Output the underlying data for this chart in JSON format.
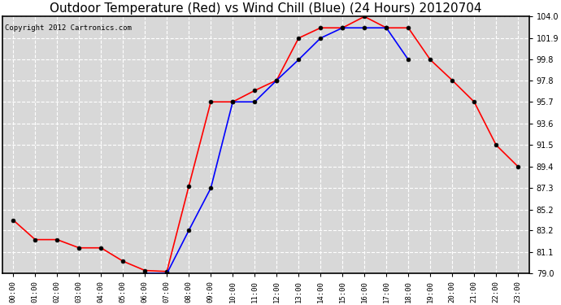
{
  "title": "Outdoor Temperature (Red) vs Wind Chill (Blue) (24 Hours) 20120704",
  "copyright": "Copyright 2012 Cartronics.com",
  "x_labels": [
    "00:00",
    "01:00",
    "02:00",
    "03:00",
    "04:00",
    "05:00",
    "06:00",
    "07:00",
    "08:00",
    "09:00",
    "10:00",
    "11:00",
    "12:00",
    "13:00",
    "14:00",
    "15:00",
    "16:00",
    "17:00",
    "18:00",
    "19:00",
    "20:00",
    "21:00",
    "22:00",
    "23:00"
  ],
  "red_temps": [
    84.2,
    82.3,
    82.3,
    81.5,
    81.5,
    80.2,
    79.3,
    79.2,
    87.5,
    95.7,
    95.7,
    96.8,
    97.8,
    101.9,
    102.9,
    102.9,
    104.0,
    102.9,
    102.9,
    99.8,
    97.8,
    95.7,
    91.5,
    89.4
  ],
  "blue_temps": [
    null,
    null,
    null,
    null,
    null,
    null,
    79.0,
    79.0,
    83.2,
    87.3,
    95.7,
    95.7,
    97.8,
    99.8,
    101.9,
    102.9,
    102.9,
    102.9,
    99.8,
    null,
    null,
    null,
    null,
    null
  ],
  "ylim_min": 79.0,
  "ylim_max": 104.0,
  "yticks": [
    79.0,
    81.1,
    83.2,
    85.2,
    87.3,
    89.4,
    91.5,
    93.6,
    95.7,
    97.8,
    99.8,
    101.9,
    104.0
  ],
  "red_color": "red",
  "blue_color": "blue",
  "bg_color": "#d8d8d8",
  "grid_color": "white",
  "title_fontsize": 11,
  "copyright_fontsize": 6.5
}
